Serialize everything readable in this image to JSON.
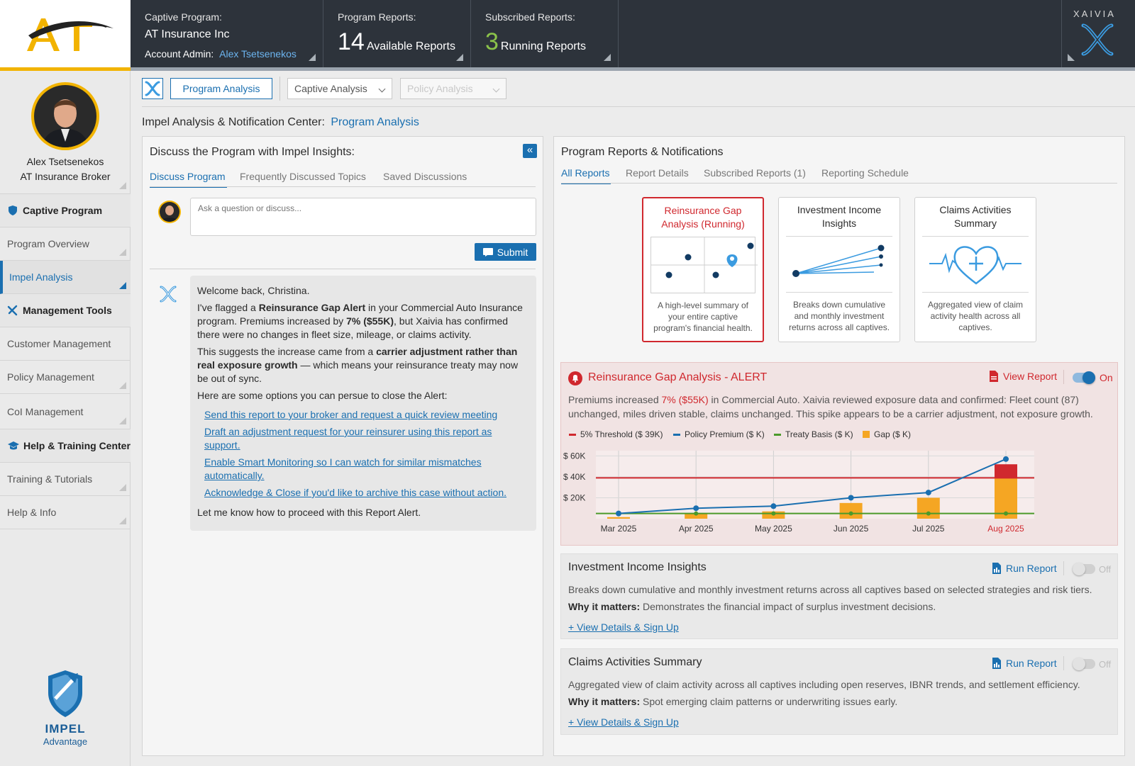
{
  "header": {
    "program_label": "Captive Program:",
    "program_name": "AT Insurance Inc",
    "admin_label": "Account Admin:",
    "admin_name": "Alex Tsetsenekos",
    "reports_label": "Program Reports:",
    "reports_count": "14",
    "reports_text": "Available Reports",
    "subscribed_label": "Subscribed Reports:",
    "subscribed_count": "3",
    "subscribed_text": "Running Reports",
    "brand": "XAIVIA"
  },
  "sidebar": {
    "user_name": "Alex Tsetsenekos",
    "user_role": "AT Insurance Broker",
    "items": [
      {
        "label": "Captive Program",
        "type": "head",
        "icon": "shield-icon"
      },
      {
        "label": "Program Overview",
        "type": "item"
      },
      {
        "label": "Impel Analysis",
        "type": "active"
      },
      {
        "label": "Management Tools",
        "type": "head",
        "icon": "tools-icon"
      },
      {
        "label": "Customer Management",
        "type": "item"
      },
      {
        "label": "Policy Management",
        "type": "item"
      },
      {
        "label": "CoI Management",
        "type": "item"
      },
      {
        "label": "Help & Training Center",
        "type": "head",
        "icon": "graduation-cap-icon"
      },
      {
        "label": "Training & Tutorials",
        "type": "item"
      },
      {
        "label": "Help & Info",
        "type": "item"
      }
    ],
    "brand_name": "IMPEL",
    "brand_sub": "Advantage"
  },
  "toolbar": {
    "program_analysis": "Program Analysis",
    "captive_analysis": "Captive Analysis",
    "policy_analysis": "Policy Analysis"
  },
  "page": {
    "title_prefix": "Impel Analysis & Notification Center:",
    "title_highlight": "Program Analysis"
  },
  "discuss": {
    "title": "Discuss the Program with Impel Insights:",
    "tabs": [
      "Discuss Program",
      "Frequently Discussed Topics",
      "Saved Discussions"
    ],
    "placeholder": "Ask a question or discuss...",
    "submit": "Submit",
    "greeting": "Welcome back, Christina.",
    "p1_a": "I've flagged a ",
    "p1_b": "Reinsurance Gap Alert",
    "p1_c": " in your Commercial Auto Insurance program. Premiums increased by ",
    "p1_d": "7% ($55K)",
    "p1_e": ", but Xaivia has confirmed there were no changes in fleet size, mileage, or claims activity.",
    "p2_a": "This suggests the increase came from a ",
    "p2_b": "carrier adjustment rather than real exposure growth",
    "p2_c": " — which means your reinsurance treaty may now be out of sync.",
    "p3": "Here are some options you can persue to close the Alert:",
    "options": [
      "Send this report to your broker and request a quick review meeting",
      "Draft an adjustment request for your reinsurer using this report as support.",
      "Enable Smart Monitoring so I can watch for similar mismatches automatically.",
      "Acknowledge & Close if you'd like to archive this case without action."
    ],
    "closing": "Let me know how to proceed with this Report Alert."
  },
  "reports": {
    "title": "Program Reports & Notifications",
    "tabs": [
      "All Reports",
      "Report Details",
      "Subscribed Reports (1)",
      "Reporting Schedule"
    ],
    "cards": [
      {
        "title": "Reinsurance Gap Analysis (Running)",
        "desc": "A high-level summary of your entire captive program's financial health."
      },
      {
        "title": "Investment Income Insights",
        "desc": "Breaks down cumulative and monthly investment returns across all captives."
      },
      {
        "title": "Claims Activities Summary",
        "desc": "Aggregated view of claim activity health across all captives."
      }
    ],
    "alert": {
      "title": "Reinsurance Gap Analysis - ALERT",
      "view_report": "View Report",
      "toggle": "On",
      "desc_a": "Premiums increased ",
      "desc_b": "7% ($55K)",
      "desc_c": " in Commercial Auto. Xaivia reviewed exposure data and confirmed: Fleet count (87) unchanged, miles driven stable, claims unchanged. This spike appears to be a carrier adjustment, not exposure growth."
    },
    "investment": {
      "title": "Investment Income Insights",
      "run": "Run Report",
      "toggle": "Off",
      "desc": "Breaks down cumulative and monthly investment returns across all captives based on selected strategies and risk tiers.",
      "why_label": "Why it matters:",
      "why": " Demonstrates the financial impact of surplus investment decisions.",
      "link": "+ View Details & Sign Up"
    },
    "claims": {
      "title": "Claims Activities Summary",
      "run": "Run Report",
      "toggle": "Off",
      "desc": "Aggregated view of claim activity across all captives including open reserves, IBNR trends, and settlement efficiency.",
      "why_label": "Why it matters:",
      "why": " Spot emerging claim patterns or underwriting issues early.",
      "link": "+ View Details & Sign Up"
    }
  },
  "colors": {
    "accent": "#1a6fb0",
    "alert": "#d0282e",
    "gold": "#f2b300",
    "gap": "#f5a623",
    "treaty": "#4c9a2a"
  },
  "chart_data": {
    "type": "bar",
    "categories": [
      "Mar 2025",
      "Apr 2025",
      "May 2025",
      "Jun 2025",
      "Jul 2025",
      "Aug 2025"
    ],
    "series": [
      {
        "name": "5% Threshold ($ 39K)",
        "type": "line",
        "values": [
          39,
          39,
          39,
          39,
          39,
          39
        ]
      },
      {
        "name": "Policy Premium ($ K)",
        "type": "line",
        "values": [
          5,
          10,
          12,
          20,
          25,
          57
        ]
      },
      {
        "name": "Treaty Basis ($ K)",
        "type": "line",
        "values": [
          5,
          5,
          5,
          5,
          5,
          5
        ]
      },
      {
        "name": "Gap ($ K)",
        "type": "bar",
        "values": [
          0,
          5,
          7,
          15,
          20,
          52
        ]
      }
    ],
    "yticks": [
      "$ 20K",
      "$ 40K",
      "$ 60K"
    ],
    "ylim": [
      0,
      65
    ],
    "highlight_category": "Aug 2025"
  }
}
